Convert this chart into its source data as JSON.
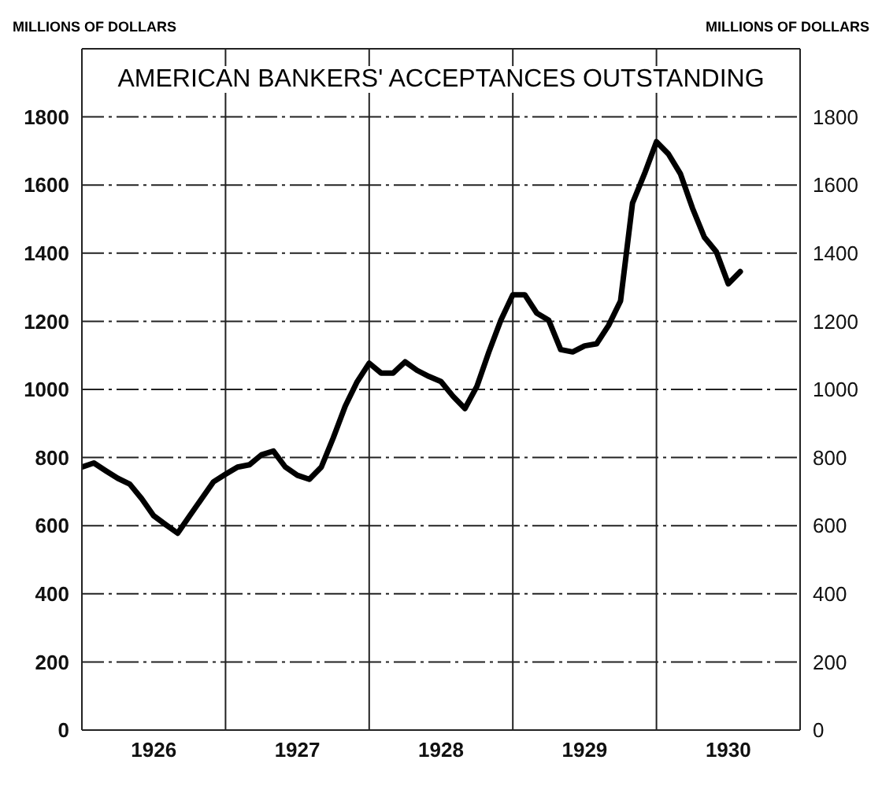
{
  "chart_data": {
    "type": "line",
    "title": "AMERICAN BANKERS' ACCEPTANCES OUTSTANDING",
    "ylabel": "MILLIONS OF DOLLARS",
    "y2label": "MILLIONS OF DOLLARS",
    "x": [
      "1926-01",
      "1926-02",
      "1926-03",
      "1926-04",
      "1926-05",
      "1926-06",
      "1926-07",
      "1926-08",
      "1926-09",
      "1926-10",
      "1926-11",
      "1926-12",
      "1927-01",
      "1927-02",
      "1927-03",
      "1927-04",
      "1927-05",
      "1927-06",
      "1927-07",
      "1927-08",
      "1927-09",
      "1927-10",
      "1927-11",
      "1927-12",
      "1928-01",
      "1928-02",
      "1928-03",
      "1928-04",
      "1928-05",
      "1928-06",
      "1928-07",
      "1928-08",
      "1928-09",
      "1928-10",
      "1928-11",
      "1928-12",
      "1929-01",
      "1929-02",
      "1929-03",
      "1929-04",
      "1929-05",
      "1929-06",
      "1929-07",
      "1929-08",
      "1929-09",
      "1929-10",
      "1929-11",
      "1929-12",
      "1930-01",
      "1930-02",
      "1930-03",
      "1930-04",
      "1930-05",
      "1930-06",
      "1930-07",
      "1930-08"
    ],
    "series": [
      {
        "color": "#000000",
        "values": [
          772,
          784,
          761,
          739,
          722,
          679,
          629,
          603,
          578,
          629,
          679,
          729,
          751,
          772,
          779,
          808,
          819,
          772,
          748,
          736,
          772,
          858,
          951,
          1023,
          1077,
          1048,
          1048,
          1081,
          1056,
          1038,
          1023,
          980,
          944,
          1009,
          1110,
          1203,
          1278,
          1278,
          1224,
          1203,
          1117,
          1110,
          1128,
          1134,
          1188,
          1260,
          1547,
          1633,
          1727,
          1691,
          1633,
          1533,
          1447,
          1404,
          1310,
          1346
        ]
      }
    ],
    "xlim": [
      "1926-01",
      "1931-01"
    ],
    "xticks": [
      {
        "value": "1926-07",
        "label": "1926"
      },
      {
        "value": "1927-07",
        "label": "1927"
      },
      {
        "value": "1928-07",
        "label": "1928"
      },
      {
        "value": "1929-07",
        "label": "1929"
      },
      {
        "value": "1930-07",
        "label": "1930"
      },
      {
        "value": "1927-01",
        "label": null
      },
      {
        "value": "1928-01",
        "label": null
      },
      {
        "value": "1929-01",
        "label": null
      },
      {
        "value": "1930-01",
        "label": null
      }
    ],
    "ylim": [
      0,
      2000
    ],
    "yticks": [
      0,
      200,
      400,
      600,
      800,
      1000,
      1200,
      1400,
      1600,
      1800
    ],
    "y2lim": [
      0,
      2000
    ],
    "y2ticks": [
      0,
      200,
      400,
      600,
      800,
      1000,
      1200,
      1400,
      1600,
      1800
    ],
    "grid": true,
    "marker": "none",
    "line_style": "solid"
  }
}
